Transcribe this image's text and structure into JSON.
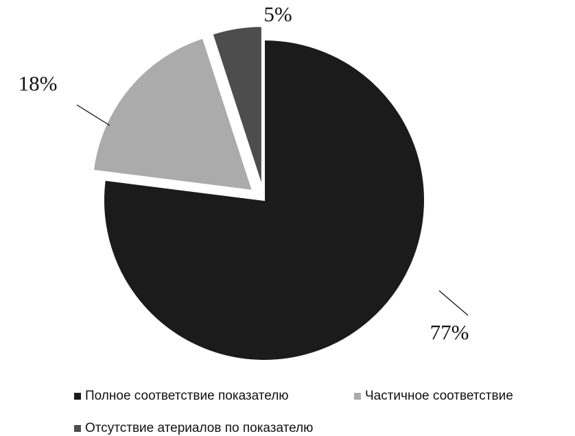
{
  "chart_data": {
    "type": "pie",
    "categories": [
      "Полное соответствие показателю",
      "Частичное соответствие",
      "Отсутствие атериалов по показателю"
    ],
    "values": [
      77,
      18,
      5
    ],
    "value_labels": [
      "77%",
      "18%",
      "5%"
    ],
    "colors": [
      "#1b1b1b",
      "#ababab",
      "#4d4d4d"
    ],
    "legend": "bottom"
  }
}
